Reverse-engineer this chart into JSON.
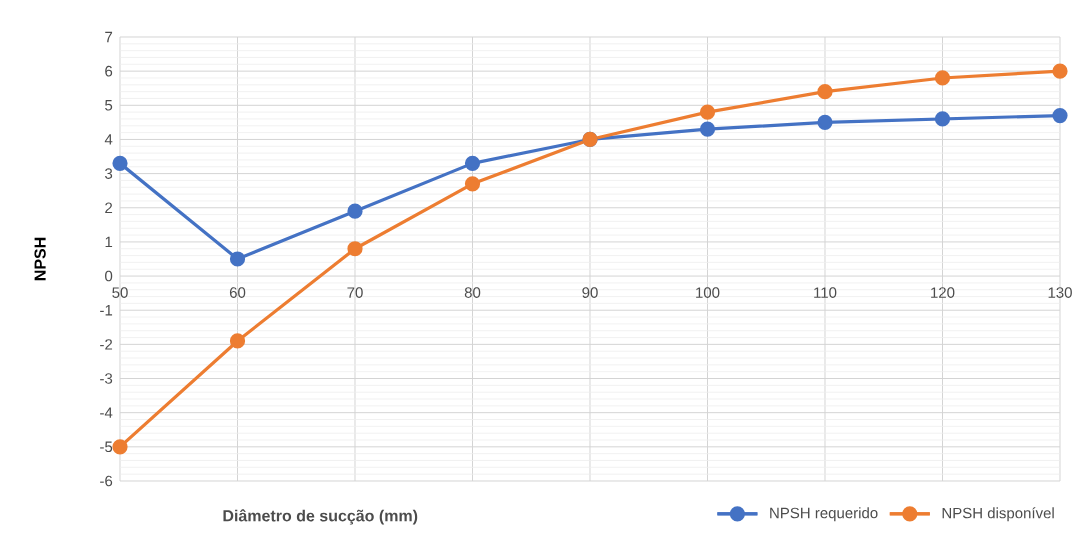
{
  "chart_data": {
    "type": "line",
    "xlabel": "Diâmetro de sucção (mm)",
    "ylabel": "NPSH",
    "categories": [
      "50",
      "60",
      "70",
      "80",
      "90",
      "100",
      "110",
      "120",
      "130"
    ],
    "series": [
      {
        "name": "NPSH requerido",
        "color": "#4472c4",
        "values": [
          3.3,
          0.5,
          1.9,
          3.3,
          4.0,
          4.3,
          4.5,
          4.6,
          4.7
        ]
      },
      {
        "name": "NPSH disponível",
        "color": "#ed7d31",
        "values": [
          -5.0,
          -1.9,
          0.8,
          2.7,
          4.0,
          4.8,
          5.4,
          5.8,
          6.0
        ]
      }
    ],
    "ylim": [
      -6,
      7
    ],
    "yticks": [
      -6,
      -5,
      -4,
      -3,
      -2,
      -1,
      0,
      1,
      2,
      3,
      4,
      5,
      6,
      7
    ],
    "grid": true,
    "legend": "bottom right",
    "marker": "circle",
    "line_style": "solid"
  }
}
